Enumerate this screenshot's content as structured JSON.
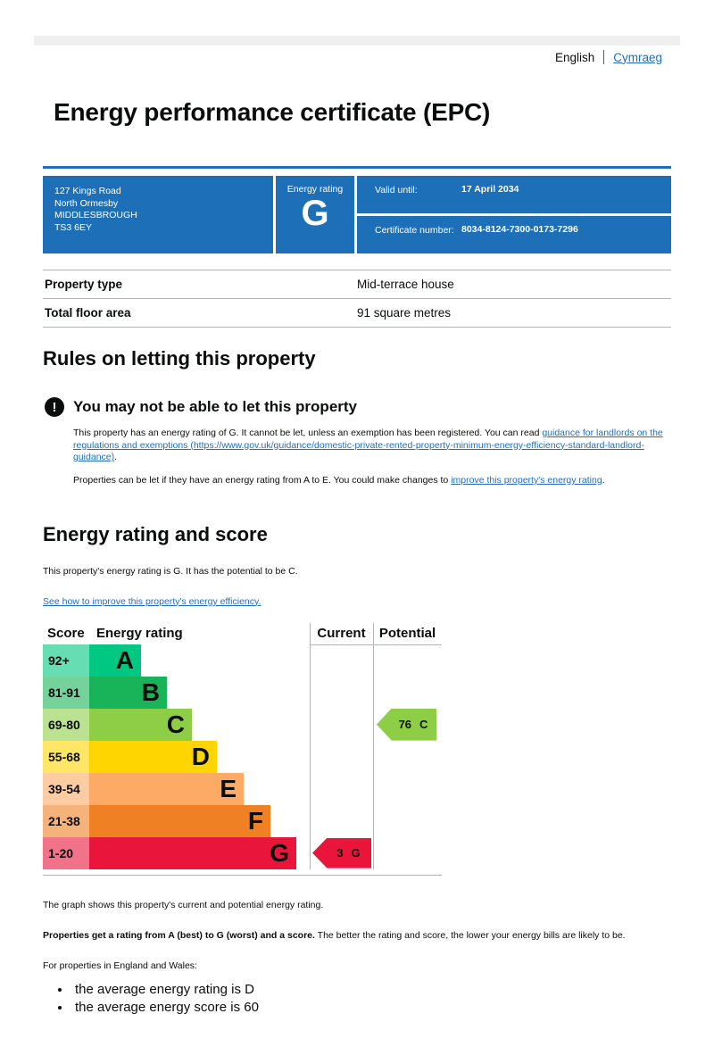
{
  "page": {
    "lang_current": "English",
    "lang_link": "Cymraeg",
    "title": "Energy performance certificate (EPC)"
  },
  "colors": {
    "brand_blue": "#1d70b8",
    "link_blue": "#1d70b8",
    "warning_black": "#0b0c0c",
    "rule_grey": "#b1b4b6"
  },
  "summary": {
    "address_lines": [
      "127 Kings Road",
      "North Ormesby",
      "MIDDLESBROUGH",
      "TS3 6EY"
    ],
    "energy_rating_label": "Energy rating",
    "energy_rating": "G",
    "valid_until_label": "Valid until:",
    "valid_until": "17 April 2034",
    "certificate_number_label": "Certificate number:",
    "certificate_number": "8034-8124-7300-0173-7296"
  },
  "property": {
    "rows": [
      {
        "label": "Property type",
        "value": "Mid-terrace house"
      },
      {
        "label": "Total floor area",
        "value": "91 square metres"
      }
    ]
  },
  "letting": {
    "heading": "Rules on letting this property",
    "warning_title": "You may not be able to let this property",
    "warning_icon": "!",
    "para1_before": "This property has an energy rating of G. It cannot be let, unless an exemption has been registered. You can read ",
    "para1_link": "guidance for landlords on the regulations and exemptions (https://www.gov.uk/guidance/domestic-private-rented-property-minimum-energy-efficiency-standard-landlord-guidance)",
    "para1_after": ".",
    "para2_before": "Properties can be let if they have an energy rating from A to E. You could make changes to ",
    "para2_link": "improve this property's energy rating",
    "para2_after": "."
  },
  "rating_section": {
    "heading": "Energy rating and score",
    "intro": "This property's energy rating is G. It has the potential to be C.",
    "improve_link": "See how to improve this property's energy efficiency."
  },
  "chart_data": {
    "type": "bar",
    "title": "Energy rating and score",
    "columns": {
      "score": "Score",
      "rating": "Energy rating",
      "current": "Current",
      "potential": "Potential"
    },
    "bands": [
      {
        "letter": "A",
        "range": "92+",
        "score_min": 92,
        "score_max": 100,
        "color": "#00c781"
      },
      {
        "letter": "B",
        "range": "81-91",
        "score_min": 81,
        "score_max": 91,
        "color": "#19b459"
      },
      {
        "letter": "C",
        "range": "69-80",
        "score_min": 69,
        "score_max": 80,
        "color": "#8dce46"
      },
      {
        "letter": "D",
        "range": "55-68",
        "score_min": 55,
        "score_max": 68,
        "color": "#ffd500"
      },
      {
        "letter": "E",
        "range": "39-54",
        "score_min": 39,
        "score_max": 54,
        "color": "#fcaa65"
      },
      {
        "letter": "F",
        "range": "21-38",
        "score_min": 21,
        "score_max": 38,
        "color": "#ef8023"
      },
      {
        "letter": "G",
        "range": "1-20",
        "score_min": 1,
        "score_max": 20,
        "color": "#e9153b"
      }
    ],
    "current": {
      "score": "3",
      "letter": "G",
      "band_index": 6
    },
    "potential": {
      "score": "76",
      "letter": "C",
      "band_index": 2
    }
  },
  "footer": {
    "graph_caption": "The graph shows this property's current and potential energy rating.",
    "rating_explain_bold": "Properties get a rating from A (best) to G (worst) and a score.",
    "rating_explain_rest": " The better the rating and score, the lower your energy bills are likely to be.",
    "region_intro": "For properties in England and Wales:",
    "bullets": [
      "the average energy rating is D",
      "the average energy score is 60"
    ]
  }
}
